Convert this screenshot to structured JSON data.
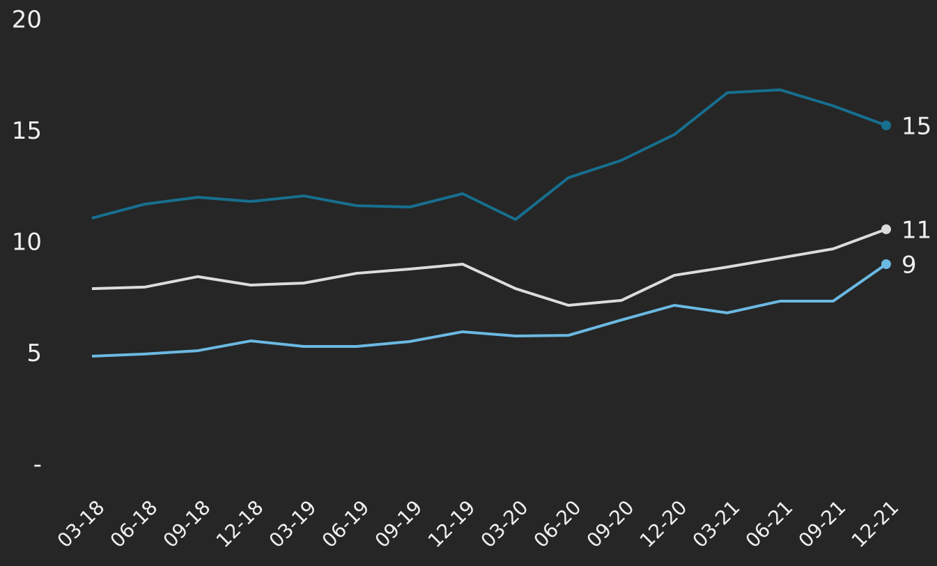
{
  "chart_data": {
    "type": "line",
    "categories": [
      "03-18",
      "06-18",
      "09-18",
      "12-18",
      "03-19",
      "06-19",
      "09-19",
      "12-19",
      "03-20",
      "06-20",
      "09-20",
      "12-20",
      "03-21",
      "06-21",
      "09-21",
      "12-21"
    ],
    "series": [
      {
        "color": "#176f8f",
        "values": [
          11.13,
          11.76,
          12.07,
          11.88,
          12.13,
          11.69,
          11.63,
          12.23,
          11.07,
          12.95,
          13.73,
          14.89,
          16.77,
          16.9,
          16.18,
          15.3
        ],
        "value_labels": [
          null,
          null,
          null,
          null,
          null,
          null,
          null,
          null,
          null,
          null,
          null,
          null,
          null,
          null,
          null,
          "15"
        ]
      },
      {
        "color": "#dcdcdc",
        "values": [
          7.96,
          8.03,
          8.5,
          8.12,
          8.21,
          8.65,
          8.84,
          9.06,
          7.96,
          7.21,
          7.43,
          8.56,
          8.93,
          9.34,
          9.75,
          10.63
        ],
        "value_labels": [
          null,
          null,
          null,
          null,
          null,
          null,
          null,
          null,
          null,
          null,
          null,
          null,
          null,
          null,
          null,
          "11"
        ]
      },
      {
        "color": "#6bb9e2",
        "values": [
          4.92,
          5.02,
          5.17,
          5.61,
          5.36,
          5.36,
          5.58,
          6.02,
          5.83,
          5.86,
          6.55,
          7.21,
          6.87,
          7.4,
          7.4,
          9.06
        ],
        "value_labels": [
          null,
          null,
          null,
          null,
          null,
          null,
          null,
          null,
          null,
          null,
          null,
          null,
          null,
          null,
          null,
          "9"
        ]
      }
    ],
    "ylim": [
      0,
      20
    ],
    "yticks": [
      {
        "value": 0,
        "label": "-"
      },
      5,
      10,
      15,
      20
    ],
    "grid": false
  }
}
